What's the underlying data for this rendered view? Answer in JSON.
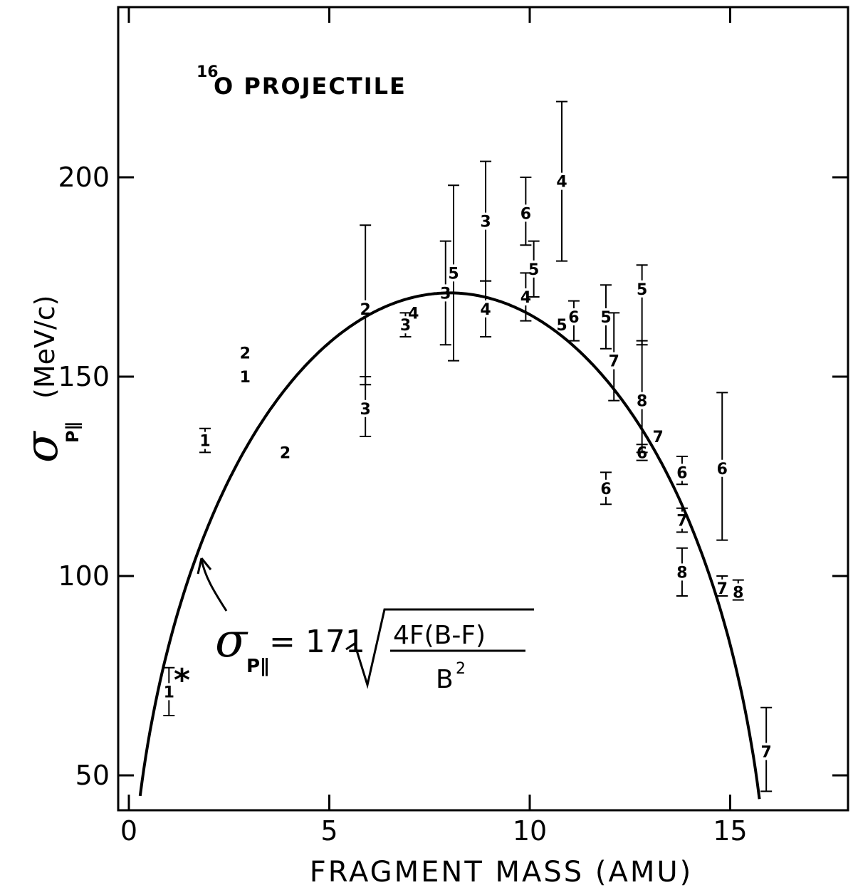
{
  "chart_data": {
    "type": "scatter",
    "title": "",
    "annotation_superscript": "16",
    "annotation": "O PROJECTILE",
    "xlabel": "FRAGMENT MASS (AMU)",
    "ylabel_symbol": "σ",
    "ylabel_subscript": "P∥",
    "ylabel_units": "(MeV/c)",
    "xlim": [
      0,
      18
    ],
    "ylim": [
      40,
      230
    ],
    "x_ticks": [
      0,
      5,
      10,
      15
    ],
    "y_ticks": [
      50,
      100,
      150,
      200
    ],
    "grid": false,
    "curve": {
      "formula_lhs_symbol": "σ",
      "formula_lhs_subscript": "P∥",
      "formula_rhs_coef": "= 171",
      "formula_numerator": "4F(B-F)",
      "formula_denominator": "B",
      "formula_denominator_sup": "2",
      "coefficient": 171,
      "B": 16
    },
    "points": [
      {
        "x": 1.0,
        "y": 71,
        "label": "1",
        "err_low": 65,
        "err_high": 77
      },
      {
        "x": 1.9,
        "y": 134,
        "label": "1",
        "err_low": 131,
        "err_high": 137
      },
      {
        "x": 2.9,
        "y": 150,
        "label": "1"
      },
      {
        "x": 2.9,
        "y": 156,
        "label": "2"
      },
      {
        "x": 3.9,
        "y": 131,
        "label": "2"
      },
      {
        "x": 5.9,
        "y": 167,
        "label": "2",
        "err_low": 148,
        "err_high": 188
      },
      {
        "x": 5.9,
        "y": 142,
        "label": "3",
        "err_low": 135,
        "err_high": 150
      },
      {
        "x": 6.9,
        "y": 163,
        "label": "3",
        "err_low": 160,
        "err_high": 166
      },
      {
        "x": 7.1,
        "y": 166,
        "label": "4"
      },
      {
        "x": 7.9,
        "y": 171,
        "label": "3",
        "err_low": 158,
        "err_high": 184
      },
      {
        "x": 8.1,
        "y": 176,
        "label": "5",
        "err_low": 154,
        "err_high": 198
      },
      {
        "x": 8.9,
        "y": 189,
        "label": "3",
        "err_low": 174,
        "err_high": 204
      },
      {
        "x": 8.9,
        "y": 167,
        "label": "4",
        "err_low": 160,
        "err_high": 174
      },
      {
        "x": 9.9,
        "y": 191,
        "label": "6",
        "err_low": 183,
        "err_high": 200
      },
      {
        "x": 9.9,
        "y": 170,
        "label": "4",
        "err_low": 164,
        "err_high": 176
      },
      {
        "x": 10.1,
        "y": 177,
        "label": "5",
        "err_low": 170,
        "err_high": 184
      },
      {
        "x": 10.8,
        "y": 199,
        "label": "4",
        "err_low": 179,
        "err_high": 219
      },
      {
        "x": 10.8,
        "y": 163,
        "label": "5"
      },
      {
        "x": 11.1,
        "y": 165,
        "label": "6",
        "err_low": 159,
        "err_high": 169
      },
      {
        "x": 11.9,
        "y": 165,
        "label": "5",
        "err_low": 157,
        "err_high": 173
      },
      {
        "x": 12.1,
        "y": 154,
        "label": "7",
        "err_low": 144,
        "err_high": 166
      },
      {
        "x": 11.9,
        "y": 122,
        "label": "6",
        "err_low": 118,
        "err_high": 126
      },
      {
        "x": 12.8,
        "y": 172,
        "label": "5",
        "err_low": 158,
        "err_high": 178
      },
      {
        "x": 12.8,
        "y": 144,
        "label": "8",
        "err_low": 131,
        "err_high": 159
      },
      {
        "x": 12.8,
        "y": 131,
        "label": "6",
        "err_low": 129,
        "err_high": 133
      },
      {
        "x": 13.2,
        "y": 135,
        "label": "7"
      },
      {
        "x": 13.8,
        "y": 126,
        "label": "6",
        "err_low": 123,
        "err_high": 130
      },
      {
        "x": 13.8,
        "y": 114,
        "label": "7",
        "err_low": 111,
        "err_high": 117
      },
      {
        "x": 13.8,
        "y": 101,
        "label": "8",
        "err_low": 95,
        "err_high": 107
      },
      {
        "x": 14.8,
        "y": 127,
        "label": "6",
        "err_low": 109,
        "err_high": 146
      },
      {
        "x": 14.8,
        "y": 97,
        "label": "7",
        "err_low": 95,
        "err_high": 100
      },
      {
        "x": 15.2,
        "y": 96,
        "label": "8",
        "err_low": 94,
        "err_high": 99
      },
      {
        "x": 15.9,
        "y": 56,
        "label": "7",
        "err_low": 46,
        "err_high": 67
      }
    ]
  }
}
